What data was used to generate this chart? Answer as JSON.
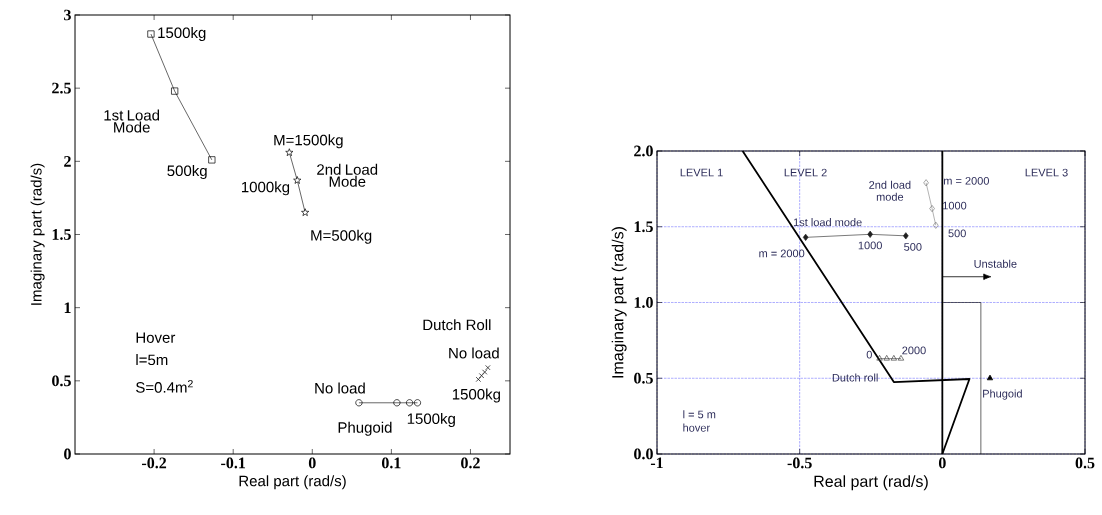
{
  "chart_data": [
    {
      "type": "line",
      "xlabel": "Real part (rad/s)",
      "ylabel": "Imaginary part (rad/s)",
      "xlim": [
        -0.3,
        0.25
      ],
      "ylim": [
        0,
        3
      ],
      "xticks": [
        -0.2,
        -0.1,
        0,
        0.1,
        0.2
      ],
      "yticks": [
        0,
        0.5,
        1,
        1.5,
        2,
        2.5,
        3
      ],
      "series": [
        {
          "name": "1st Load Mode",
          "color": "#000000",
          "marker": "square",
          "x": [
            -0.204,
            -0.174,
            -0.127
          ],
          "values": [
            2.87,
            2.48,
            2.01
          ]
        },
        {
          "name": "2nd Load Mode",
          "color": "#000000",
          "marker": "star",
          "x": [
            -0.029,
            -0.019,
            -0.009
          ],
          "values": [
            2.06,
            1.87,
            1.65
          ]
        },
        {
          "name": "Phugoid",
          "color": "#000000",
          "marker": "circle",
          "x": [
            0.059,
            0.107,
            0.123,
            0.133
          ],
          "values": [
            0.35,
            0.35,
            0.35,
            0.35
          ]
        },
        {
          "name": "Dutch Roll",
          "type": "scatter",
          "color": "#000000",
          "marker": "cross",
          "x": [
            0.21,
            0.214,
            0.218,
            0.222
          ],
          "values": [
            0.51,
            0.535,
            0.56,
            0.59
          ]
        }
      ],
      "annotations": [
        {
          "text": "1500kg",
          "x": -0.204,
          "y": 2.87
        },
        {
          "text": "500kg",
          "x": -0.127,
          "y": 2.01
        },
        {
          "text": "M=1500kg",
          "x": -0.029,
          "y": 2.06
        },
        {
          "text": "1000kg",
          "x": -0.019,
          "y": 1.87
        },
        {
          "text": "M=500kg",
          "x": -0.009,
          "y": 1.65
        },
        {
          "text": "No load",
          "x": 0.059,
          "y": 0.35
        },
        {
          "text": "1500kg",
          "x": 0.133,
          "y": 0.35
        },
        {
          "text": "No load",
          "x": 0.222,
          "y": 0.59
        },
        {
          "text": "1500kg",
          "x": 0.21,
          "y": 0.51
        },
        "Hover",
        "l=5m",
        "S=0.4m$^{2}$"
      ]
    },
    {
      "type": "line",
      "xlabel": "Real part (rad/s)",
      "ylabel": "Imaginary part (rad/s)",
      "xlim": [
        -1,
        0.5
      ],
      "ylim": [
        0,
        2
      ],
      "xticks": [
        -1,
        -0.5,
        0,
        0.5
      ],
      "yticks": [
        {
          "value": 0,
          "label": "0.0"
        },
        0.5,
        {
          "value": 1,
          "label": "1.0"
        },
        1.5,
        {
          "value": 2,
          "label": "2.0"
        }
      ],
      "grid": true,
      "ref_lines": [
        {
          "axis": "x",
          "value": 0,
          "color": "#000000"
        }
      ],
      "series": [
        {
          "color": "#000000",
          "marker": "none",
          "x": [
            -0.7,
            -0.17,
            0.095,
            0
          ],
          "values": [
            2.0,
            0.475,
            0.495,
            0
          ]
        },
        {
          "color": "#000000",
          "marker": "none",
          "x": [
            0,
            0.135,
            0.135
          ],
          "values": [
            1.0,
            1.0,
            0
          ]
        },
        {
          "name": "1st load mode",
          "color": "#202020",
          "marker": "diamond",
          "x": [
            -0.479,
            -0.253,
            -0.128
          ],
          "values": [
            1.43,
            1.45,
            1.44
          ]
        },
        {
          "name": "2nd load mode",
          "color": "#808080",
          "marker": "diamond",
          "x": [
            -0.057,
            -0.036,
            -0.023
          ],
          "values": [
            1.79,
            1.62,
            1.51
          ]
        },
        {
          "name": "Dutch roll",
          "color": "#404040",
          "marker": "triangle",
          "x": [
            -0.22,
            -0.195,
            -0.17,
            -0.145
          ],
          "values": [
            0.63,
            0.63,
            0.63,
            0.63
          ]
        },
        {
          "name": "Phugoid",
          "color": "#000000",
          "marker": "triangle",
          "x": [
            0.167
          ],
          "values": [
            0.5
          ]
        }
      ],
      "annotations": [
        "LEVEL 1",
        "LEVEL 2",
        "LEVEL 3",
        {
          "text": "m = 2000",
          "x": -0.479,
          "y": 1.43
        },
        {
          "text": "1000",
          "x": -0.253,
          "y": 1.45
        },
        {
          "text": "500",
          "x": -0.128,
          "y": 1.44
        },
        {
          "text": "m = 2000",
          "x": -0.057,
          "y": 1.79
        },
        {
          "text": "1000",
          "x": -0.036,
          "y": 1.62
        },
        {
          "text": "500",
          "x": -0.023,
          "y": 1.51
        },
        {
          "text": "Unstable",
          "x": 0,
          "y": 1.17
        },
        {
          "text": "0",
          "x": -0.22,
          "y": 0.63
        },
        {
          "text": "2000",
          "x": -0.145,
          "y": 0.63
        },
        "l = 5 m",
        "hover"
      ]
    }
  ]
}
